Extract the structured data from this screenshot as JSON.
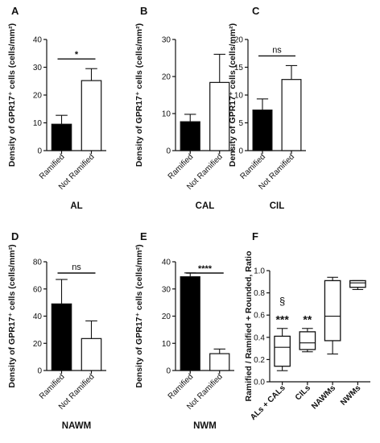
{
  "chart_data": [
    {
      "panel": "A",
      "type": "bar",
      "title": "AL",
      "ylabel": "Density of GPR17⁺ cells (cells/mm²)",
      "ylim": [
        0,
        40
      ],
      "yticks": [
        0,
        10,
        20,
        30,
        40
      ],
      "categories": [
        "Ramified",
        "Not Ramified"
      ],
      "values": [
        9.5,
        25.2
      ],
      "errors": [
        3.2,
        4.3
      ],
      "fills": [
        "#000000",
        "#ffffff"
      ],
      "significance": "*"
    },
    {
      "panel": "B",
      "type": "bar",
      "title": "CAL",
      "ylabel": "Density of GPR17⁺ cells (cells/mm²)",
      "ylim": [
        0,
        30
      ],
      "yticks": [
        0,
        10,
        20,
        30
      ],
      "categories": [
        "Ramified",
        "Not Ramified"
      ],
      "values": [
        7.8,
        18.4
      ],
      "errors": [
        2.0,
        7.6
      ],
      "fills": [
        "#000000",
        "#ffffff"
      ],
      "significance": ""
    },
    {
      "panel": "C",
      "type": "bar",
      "title": "CIL",
      "ylabel": "Density of GPR17⁺ cells (cells/mm²)",
      "ylim": [
        0,
        20
      ],
      "yticks": [
        0,
        5,
        10,
        15,
        20
      ],
      "categories": [
        "Ramified",
        "Not Ramified"
      ],
      "values": [
        7.3,
        12.8
      ],
      "errors": [
        2.0,
        2.5
      ],
      "fills": [
        "#000000",
        "#ffffff"
      ],
      "significance": "ns"
    },
    {
      "panel": "D",
      "type": "bar",
      "title": "NAWM",
      "ylabel": "Density of GPR17⁺ cells (cells/mm²)",
      "ylim": [
        0,
        80
      ],
      "yticks": [
        0,
        20,
        40,
        60,
        80
      ],
      "categories": [
        "Ramified",
        "Not Ramified"
      ],
      "values": [
        49,
        23.5
      ],
      "errors": [
        18,
        13
      ],
      "fills": [
        "#000000",
        "#ffffff"
      ],
      "significance": "ns"
    },
    {
      "panel": "E",
      "type": "bar",
      "title": "NWM",
      "ylabel": "Density of GPR17⁺ cells (cells/mm²)",
      "ylim": [
        0,
        40
      ],
      "yticks": [
        0,
        10,
        20,
        30,
        40
      ],
      "categories": [
        "Ramified",
        "Not Ramified"
      ],
      "values": [
        34.5,
        6.2
      ],
      "errors": [
        1.4,
        1.7
      ],
      "fills": [
        "#000000",
        "#ffffff"
      ],
      "significance": "****"
    },
    {
      "panel": "F",
      "type": "box",
      "title": "",
      "ylabel": "Ramified / Ramified + Rounded, Ratio",
      "ylim": [
        0,
        1.0
      ],
      "yticks": [
        0.0,
        0.2,
        0.4,
        0.6,
        0.8,
        1.0
      ],
      "categories": [
        "ALs + CALs",
        "CILs",
        "NAWMs",
        "NWMs"
      ],
      "boxes": [
        {
          "min": 0.1,
          "q1": 0.14,
          "median": 0.31,
          "q3": 0.41,
          "max": 0.48
        },
        {
          "min": 0.27,
          "q1": 0.29,
          "median": 0.35,
          "q3": 0.45,
          "max": 0.48
        },
        {
          "min": 0.25,
          "q1": 0.37,
          "median": 0.59,
          "q3": 0.91,
          "max": 0.94
        },
        {
          "min": 0.83,
          "q1": 0.85,
          "median": 0.89,
          "q3": 0.91,
          "max": 0.91
        }
      ],
      "annotations": [
        {
          "category": "ALs + CALs",
          "text": "***",
          "y": 0.56
        },
        {
          "category": "ALs + CALs",
          "text": "§",
          "y": 0.73
        },
        {
          "category": "CILs",
          "text": "**",
          "y": 0.56
        }
      ]
    }
  ]
}
